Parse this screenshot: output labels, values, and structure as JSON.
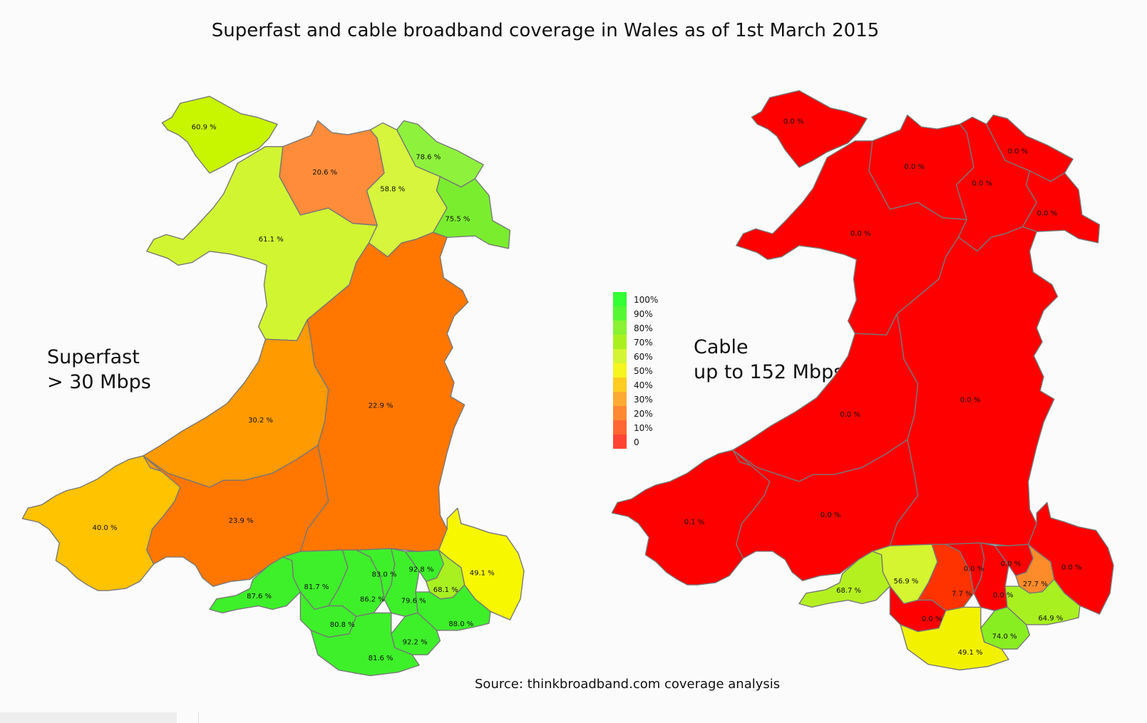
{
  "title": "Superfast and cable broadband coverage in Wales as of 1st March 2015",
  "maps": {
    "left_label": "Superfast\n> 30 Mbps",
    "right_label": "Cable\nup to 152 Mbps"
  },
  "source": "Source: thinkbroadband.com coverage analysis",
  "legend": {
    "labels": [
      "100%",
      "90%",
      "80%",
      "70%",
      "60%",
      "50%",
      "40%",
      "30%",
      "20%",
      "10%",
      "0"
    ],
    "colors": [
      "#33ff33",
      "#55f733",
      "#88f233",
      "#aaf020",
      "#d4f533",
      "#f5f520",
      "#ffcc22",
      "#ffaa33",
      "#ff8833",
      "#ff6633",
      "#ff4433"
    ]
  },
  "superfast": {
    "anglesey": "60.9 %",
    "conwy": "20.6 %",
    "denbighshire": "58.8 %",
    "flintshire": "78.6 %",
    "wrexham": "75.5 %",
    "gwynedd": "61.1 %",
    "powys": "22.9 %",
    "ceredigion": "30.2 %",
    "pembrokeshire": "40.0 %",
    "carmarthenshire": "23.9 %",
    "monmouthshire": "49.1 %",
    "swansea": "87.6 %",
    "neath": "81.7 %",
    "rhondda": "86.2 %",
    "merthyr": "83.0 %",
    "caerphilly": "79.6 %",
    "blaenau": "92.8 %",
    "torfaen": "68.1 %",
    "bridgend": "80.8 %",
    "cardiff": "92.2 %",
    "newport": "88.0 %",
    "vale": "81.6 %"
  },
  "cable": {
    "anglesey": "0.0 %",
    "conwy": "0.0 %",
    "denbighshire": "0.0 %",
    "flintshire": "0.0 %",
    "wrexham": "0.0 %",
    "gwynedd": "0.0 %",
    "powys": "0.0 %",
    "ceredigion": "0.0 %",
    "pembrokeshire": "0.1 %",
    "carmarthenshire": "0.0 %",
    "monmouthshire": "0.0 %",
    "swansea": "68.7 %",
    "neath": "56.9 %",
    "rhondda": "7.7 %",
    "merthyr": "0.0 %",
    "caerphilly": "0.0 %",
    "blaenau": "0.0 %",
    "torfaen": "27.7 %",
    "bridgend": "0.0 %",
    "cardiff": "74.0 %",
    "newport": "64.9 %",
    "vale": "49.1 %"
  },
  "colors": {
    "superfast": {
      "anglesey": "#c8f500",
      "conwy": "#ff8c3a",
      "denbighshire": "#d6f53c",
      "flintshire": "#8ef23c",
      "wrexham": "#7aee2e",
      "gwynedd": "#d2f532",
      "powys": "#ff7700",
      "ceredigion": "#ff9a00",
      "pembrokeshire": "#ffc300",
      "carmarthenshire": "#ff7700",
      "monmouthshire": "#f7f700",
      "south": "#3ef02a",
      "torfaen": "#a8f020"
    },
    "cable_default": "#ff0000",
    "cable": {
      "swansea": "#b4f020",
      "neath": "#d4f530",
      "rhondda": "#ff3300",
      "torfaen": "#ff8c2a",
      "cardiff": "#88ee22",
      "newport": "#a8f020",
      "vale": "#f2f200"
    }
  }
}
